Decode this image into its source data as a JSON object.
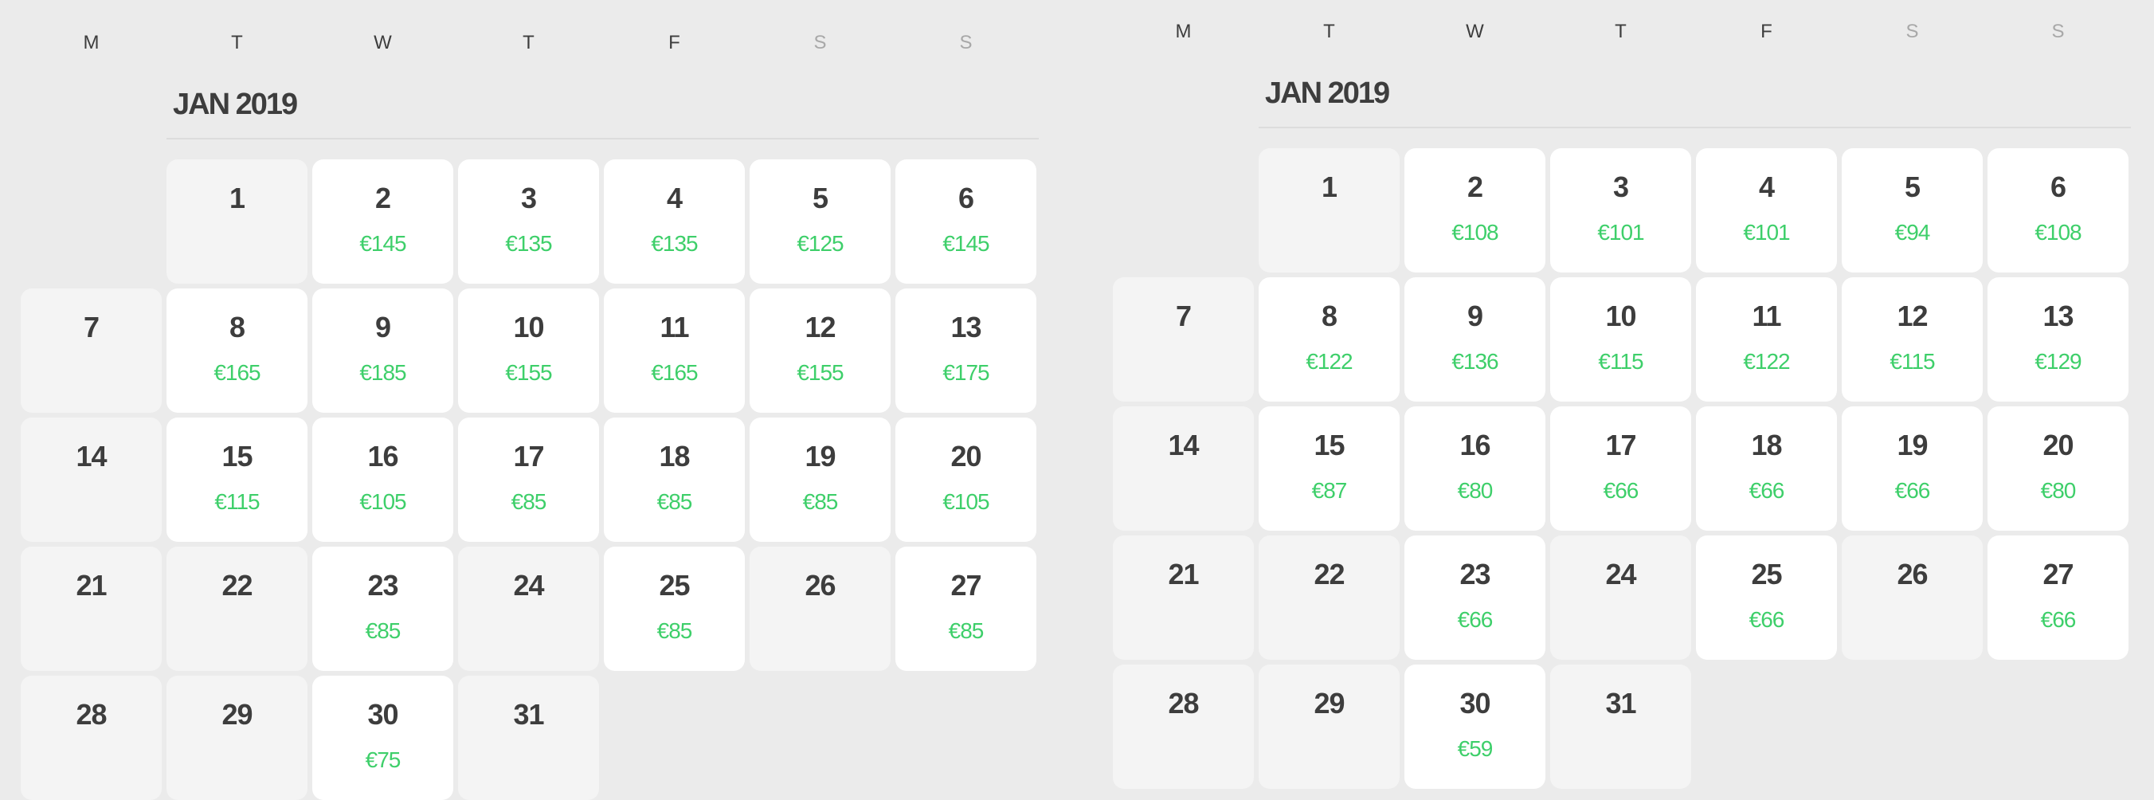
{
  "colors": {
    "background": "#ebebeb",
    "available_cell": "#ffffff",
    "unavailable_cell": "#f4f4f4",
    "price": "#3ecf6a",
    "text": "#3d3d3d",
    "weekend_header": "#a8a8a8"
  },
  "calendars": [
    {
      "weekdays": [
        "M",
        "T",
        "W",
        "T",
        "F",
        "S",
        "S"
      ],
      "title": "JAN 2019",
      "days": [
        {
          "day": "1",
          "price": null
        },
        {
          "day": "2",
          "price": "€145"
        },
        {
          "day": "3",
          "price": "€135"
        },
        {
          "day": "4",
          "price": "€135"
        },
        {
          "day": "5",
          "price": "€125"
        },
        {
          "day": "6",
          "price": "€145"
        },
        {
          "day": "7",
          "price": null
        },
        {
          "day": "8",
          "price": "€165"
        },
        {
          "day": "9",
          "price": "€185"
        },
        {
          "day": "10",
          "price": "€155"
        },
        {
          "day": "11",
          "price": "€165"
        },
        {
          "day": "12",
          "price": "€155"
        },
        {
          "day": "13",
          "price": "€175"
        },
        {
          "day": "14",
          "price": null
        },
        {
          "day": "15",
          "price": "€115"
        },
        {
          "day": "16",
          "price": "€105"
        },
        {
          "day": "17",
          "price": "€85"
        },
        {
          "day": "18",
          "price": "€85"
        },
        {
          "day": "19",
          "price": "€85"
        },
        {
          "day": "20",
          "price": "€105"
        },
        {
          "day": "21",
          "price": null
        },
        {
          "day": "22",
          "price": null
        },
        {
          "day": "23",
          "price": "€85"
        },
        {
          "day": "24",
          "price": null
        },
        {
          "day": "25",
          "price": "€85"
        },
        {
          "day": "26",
          "price": null
        },
        {
          "day": "27",
          "price": "€85"
        },
        {
          "day": "28",
          "price": null
        },
        {
          "day": "29",
          "price": null
        },
        {
          "day": "30",
          "price": "€75"
        },
        {
          "day": "31",
          "price": null
        }
      ]
    },
    {
      "weekdays": [
        "M",
        "T",
        "W",
        "T",
        "F",
        "S",
        "S"
      ],
      "title": "JAN 2019",
      "days": [
        {
          "day": "1",
          "price": null
        },
        {
          "day": "2",
          "price": "€108"
        },
        {
          "day": "3",
          "price": "€101"
        },
        {
          "day": "4",
          "price": "€101"
        },
        {
          "day": "5",
          "price": "€94"
        },
        {
          "day": "6",
          "price": "€108"
        },
        {
          "day": "7",
          "price": null
        },
        {
          "day": "8",
          "price": "€122"
        },
        {
          "day": "9",
          "price": "€136"
        },
        {
          "day": "10",
          "price": "€115"
        },
        {
          "day": "11",
          "price": "€122"
        },
        {
          "day": "12",
          "price": "€115"
        },
        {
          "day": "13",
          "price": "€129"
        },
        {
          "day": "14",
          "price": null
        },
        {
          "day": "15",
          "price": "€87"
        },
        {
          "day": "16",
          "price": "€80"
        },
        {
          "day": "17",
          "price": "€66"
        },
        {
          "day": "18",
          "price": "€66"
        },
        {
          "day": "19",
          "price": "€66"
        },
        {
          "day": "20",
          "price": "€80"
        },
        {
          "day": "21",
          "price": null
        },
        {
          "day": "22",
          "price": null
        },
        {
          "day": "23",
          "price": "€66"
        },
        {
          "day": "24",
          "price": null
        },
        {
          "day": "25",
          "price": "€66"
        },
        {
          "day": "26",
          "price": null
        },
        {
          "day": "27",
          "price": "€66"
        },
        {
          "day": "28",
          "price": null
        },
        {
          "day": "29",
          "price": null
        },
        {
          "day": "30",
          "price": "€59"
        },
        {
          "day": "31",
          "price": null
        }
      ]
    }
  ]
}
